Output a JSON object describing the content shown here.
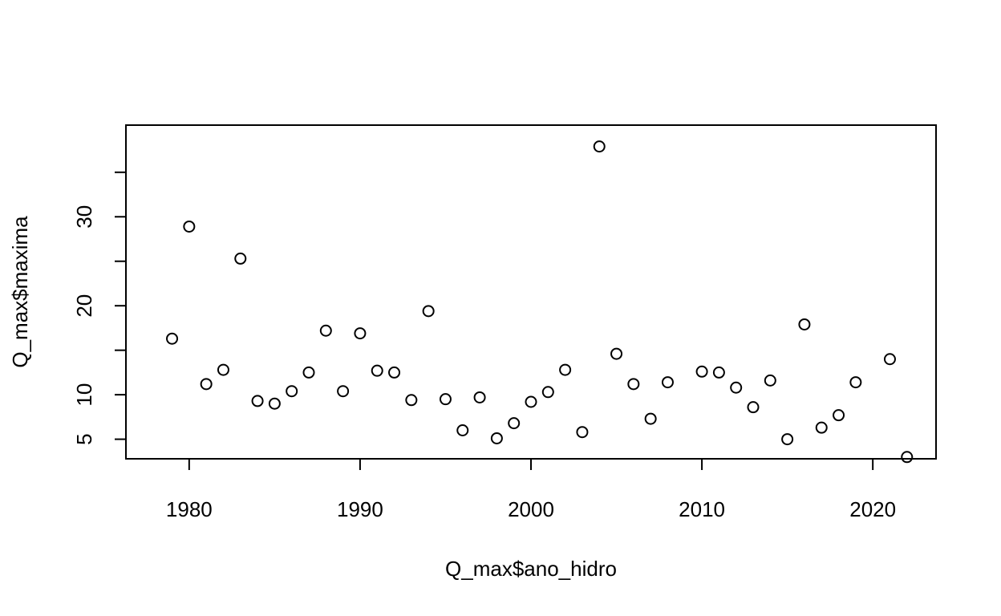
{
  "chart_data": {
    "type": "scatter",
    "title": "",
    "xlabel": "Q_max$ano_hidro",
    "ylabel": "Q_max$maxima",
    "xlim": [
      1976.3,
      2023.7
    ],
    "ylim": [
      2.8,
      40.3
    ],
    "x_ticks": [
      1980,
      1990,
      2000,
      2010,
      2020
    ],
    "y_ticks": [
      5,
      10,
      15,
      20,
      25,
      30,
      35
    ],
    "y_tick_labels": [
      "5",
      "10",
      "",
      "20",
      "",
      "30",
      ""
    ],
    "grid": false,
    "legend": "none",
    "marker": "open-circle",
    "color": "#000000",
    "series": [
      {
        "x": [
          1979,
          1980,
          1981,
          1982,
          1983,
          1984,
          1985,
          1986,
          1987,
          1988,
          1989,
          1990,
          1991,
          1992,
          1993,
          1994,
          1995,
          1996,
          1997,
          1998,
          1999,
          2000,
          2001,
          2002,
          2003,
          2004,
          2005,
          2006,
          2007,
          2008,
          2010,
          2011,
          2012,
          2013,
          2014,
          2015,
          2016,
          2017,
          2018,
          2019,
          2021,
          2022
        ],
        "y": [
          16.3,
          28.9,
          11.2,
          12.8,
          25.3,
          9.3,
          9.0,
          10.4,
          12.5,
          17.2,
          10.4,
          16.9,
          12.7,
          12.5,
          9.4,
          19.4,
          9.5,
          6.0,
          9.7,
          5.1,
          6.8,
          9.2,
          10.3,
          12.8,
          5.8,
          37.9,
          14.6,
          11.2,
          7.3,
          11.4,
          12.6,
          12.5,
          10.8,
          8.6,
          11.6,
          5.0,
          17.9,
          6.3,
          7.7,
          11.4,
          14.0,
          3.0
        ]
      }
    ]
  }
}
